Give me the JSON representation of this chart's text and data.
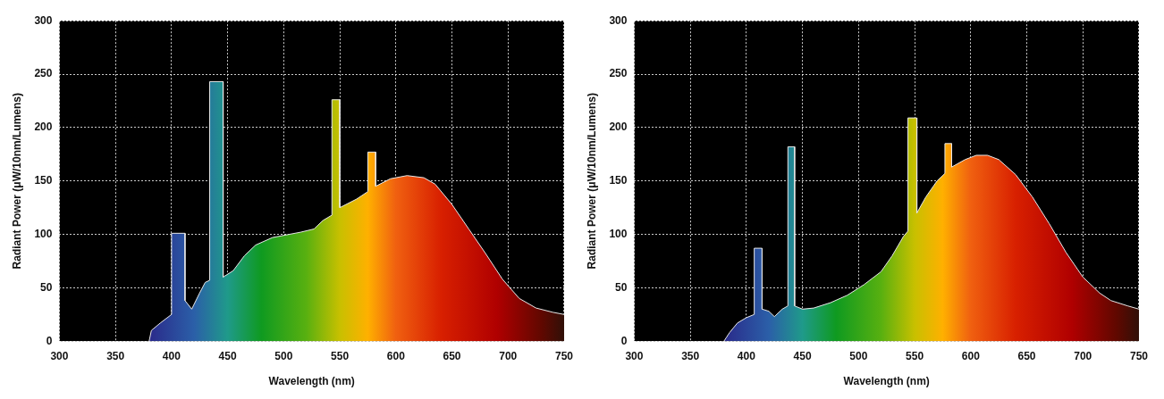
{
  "chart_data": [
    {
      "type": "area",
      "xlabel": "Wavelength (nm)",
      "ylabel": "Radiant Power (μW/10nm/Lumens)",
      "xlim": [
        300,
        750
      ],
      "ylim": [
        0,
        300
      ],
      "xticks": [
        300,
        350,
        400,
        450,
        500,
        550,
        600,
        650,
        700,
        750
      ],
      "yticks": [
        0,
        50,
        100,
        150,
        200,
        250,
        300
      ],
      "grid": true,
      "legend": false,
      "series": [
        {
          "color": "#e8e8e8",
          "x": [
            380,
            382,
            390,
            400,
            400,
            412,
            412,
            418,
            425,
            430,
            434,
            434,
            446,
            446,
            455,
            465,
            475,
            490,
            500,
            515,
            527,
            535,
            543,
            543,
            550,
            550,
            565,
            575,
            575,
            582,
            582,
            595,
            610,
            625,
            635,
            650,
            665,
            680,
            695,
            710,
            725,
            740,
            750
          ],
          "values": [
            0,
            10,
            17,
            25,
            101,
            101,
            38,
            30,
            45,
            55,
            57,
            243,
            243,
            60,
            66,
            80,
            90,
            97,
            99,
            102,
            105,
            113,
            118,
            226,
            226,
            125,
            133,
            140,
            177,
            177,
            145,
            152,
            155,
            153,
            147,
            128,
            105,
            82,
            58,
            40,
            31,
            27,
            25
          ]
        }
      ]
    },
    {
      "type": "area",
      "xlabel": "Wavelength (nm)",
      "ylabel": "Radiant Power (μW/10nm/Lumens)",
      "xlim": [
        300,
        750
      ],
      "ylim": [
        0,
        300
      ],
      "xticks": [
        300,
        350,
        400,
        450,
        500,
        550,
        600,
        650,
        700,
        750
      ],
      "yticks": [
        0,
        50,
        100,
        150,
        200,
        250,
        300
      ],
      "grid": true,
      "legend": false,
      "series": [
        {
          "color": "#e8e8e8",
          "x": [
            380,
            385,
            392,
            400,
            407,
            407,
            414,
            414,
            420,
            425,
            432,
            437,
            437,
            443,
            443,
            450,
            460,
            475,
            490,
            505,
            520,
            530,
            540,
            544,
            544,
            552,
            552,
            560,
            570,
            577,
            577,
            583,
            583,
            595,
            605,
            615,
            625,
            640,
            655,
            670,
            685,
            700,
            715,
            725,
            740,
            750
          ],
          "values": [
            0,
            8,
            17,
            22,
            25,
            87,
            87,
            30,
            28,
            23,
            30,
            33,
            182,
            182,
            33,
            30,
            31,
            36,
            43,
            53,
            65,
            80,
            98,
            103,
            209,
            209,
            120,
            135,
            150,
            157,
            185,
            185,
            163,
            170,
            174,
            174,
            170,
            156,
            135,
            110,
            83,
            60,
            45,
            38,
            33,
            30
          ]
        }
      ]
    }
  ]
}
